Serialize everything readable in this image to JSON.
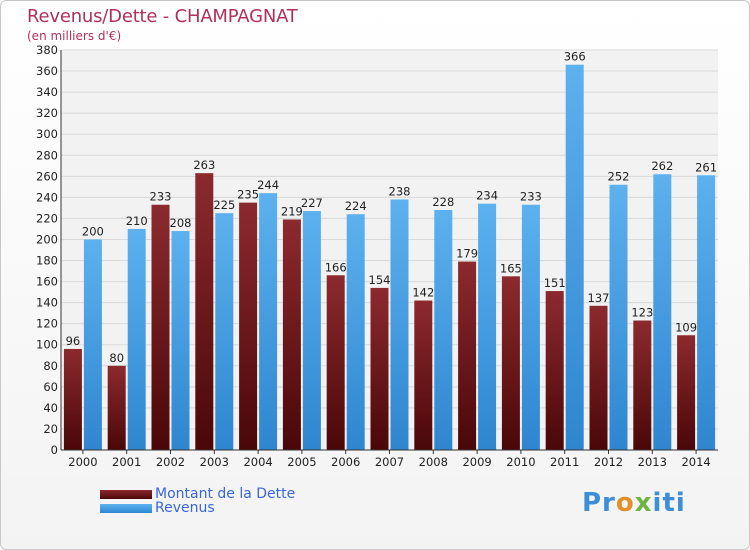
{
  "header": {
    "title": "Revenus/Dette - CHAMPAGNAT",
    "subtitle": "(en milliers d'€)"
  },
  "legend": {
    "debt_label": "Montant de la Dette",
    "revenue_label": "Revenus"
  },
  "logo": {
    "text": "Proxiti"
  },
  "colors": {
    "debt": "#7a1a1e",
    "revenue": "#4aa3e6",
    "title": "#b0305c",
    "legend_text": "#3b66d8"
  },
  "chart_data": {
    "type": "bar",
    "categories": [
      "2000",
      "2001",
      "2002",
      "2003",
      "2004",
      "2005",
      "2006",
      "2007",
      "2008",
      "2009",
      "2010",
      "2011",
      "2012",
      "2013",
      "2014"
    ],
    "series": [
      {
        "name": "Montant de la Dette",
        "values": [
          96,
          80,
          233,
          263,
          235,
          219,
          166,
          154,
          142,
          179,
          165,
          151,
          137,
          123,
          109
        ]
      },
      {
        "name": "Revenus",
        "values": [
          200,
          210,
          208,
          225,
          244,
          227,
          224,
          238,
          228,
          234,
          233,
          366,
          252,
          262,
          261
        ]
      }
    ],
    "ylim": [
      0,
      380
    ],
    "ytick_step": 20,
    "grid": true,
    "legend_position": "bottom-left"
  }
}
